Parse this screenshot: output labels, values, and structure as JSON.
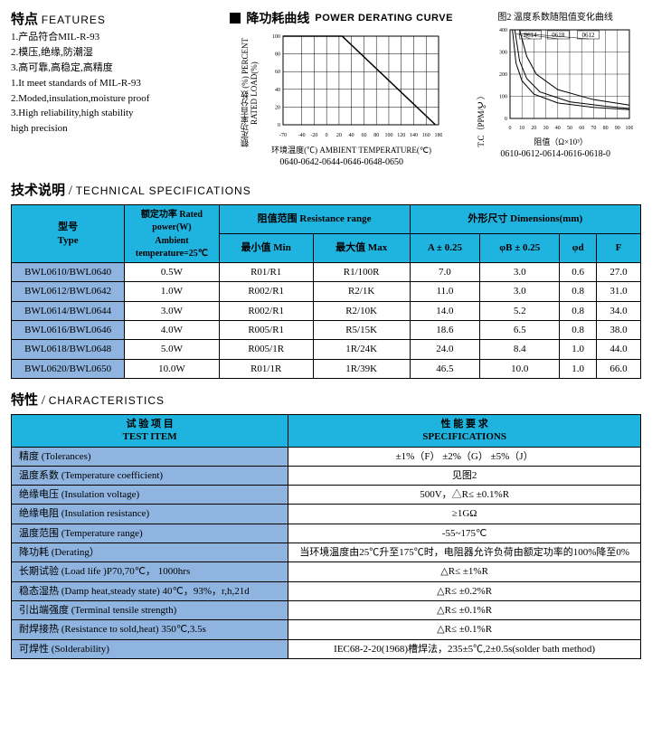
{
  "features": {
    "title_zh": "特点",
    "title_en": "FEATURES",
    "lines_zh": [
      "1.产品符合MIL-R-93",
      "2.模压,绝缘,防潮湿",
      "3.高可靠,高稳定,高精度"
    ],
    "lines_en": [
      "1.It meet standards of MIL-R-93",
      "2.Moded,insulation,moisture proof",
      "3.High reliability,high stability",
      "high precision"
    ]
  },
  "derating": {
    "title_zh": "降功耗曲线",
    "title_en": "POWER DERATING CURVE",
    "ylabel": "额定功率百分数 (%)\nPERCENT RATED LOAD(%)",
    "xlabel": "环境温度(℃) AMBIENT TEMPERATURE(℃)",
    "models": "0640-0642-0644-0646-0648-0650",
    "xticks": [
      -70,
      -40,
      -20,
      0,
      20,
      40,
      60,
      80,
      100,
      120,
      140,
      160,
      180
    ],
    "yticks": [
      0,
      20,
      40,
      60,
      80,
      100
    ],
    "line_points": [
      [
        -70,
        100
      ],
      [
        25,
        100
      ],
      [
        175,
        0
      ]
    ],
    "grid_color": "#000",
    "line_color": "#000",
    "bg": "#fff"
  },
  "tc_chart": {
    "title": "图2 温度系数随阻值变化曲线",
    "ylabel": "T.C（PPM/℃）",
    "xlabel": "阻值（Ω×10³）",
    "models": "0610-0612-0614-0616-0618-0",
    "xticks": [
      0,
      10,
      20,
      30,
      40,
      50,
      60,
      70,
      80,
      90,
      100
    ],
    "yticks": [
      0,
      100,
      200,
      300,
      400
    ],
    "curves": [
      {
        "label": "0614",
        "points": [
          [
            2,
            400
          ],
          [
            5,
            250
          ],
          [
            10,
            170
          ],
          [
            20,
            110
          ],
          [
            40,
            70
          ],
          [
            70,
            50
          ],
          [
            100,
            40
          ]
        ]
      },
      {
        "label": "0618",
        "points": [
          [
            4,
            400
          ],
          [
            8,
            260
          ],
          [
            14,
            180
          ],
          [
            25,
            120
          ],
          [
            50,
            75
          ],
          [
            80,
            55
          ],
          [
            100,
            45
          ]
        ]
      },
      {
        "label": "0612",
        "points": [
          [
            8,
            400
          ],
          [
            14,
            280
          ],
          [
            22,
            200
          ],
          [
            40,
            130
          ],
          [
            70,
            85
          ],
          [
            100,
            60
          ]
        ]
      }
    ]
  },
  "tech_spec": {
    "heading_zh": "技术说明",
    "heading_en": "TECHNICAL SPECIFICATIONS",
    "headers": {
      "type_zh": "型号",
      "type_en": "Type",
      "power_zh": "额定功率 Rated  power(W)",
      "power_sub": "Ambient temperature=25℃",
      "res_range": "阻值范围  Resistance range",
      "min": "最小值 Min",
      "max": "最大值 Max",
      "dim": "外形尺寸  Dimensions(mm)",
      "a": "A ± 0.25",
      "b": "φB ± 0.25",
      "d": "φd",
      "f": "F"
    },
    "rows": [
      {
        "type": "BWL0610/BWL0640",
        "power": "0.5W",
        "min": "R01/R1",
        "max": "R1/100R",
        "a": "7.0",
        "b": "3.0",
        "d": "0.6",
        "f": "27.0"
      },
      {
        "type": "BWL0612/BWL0642",
        "power": "1.0W",
        "min": "R002/R1",
        "max": "R2/1K",
        "a": "11.0",
        "b": "3.0",
        "d": "0.8",
        "f": "31.0"
      },
      {
        "type": "BWL0614/BWL0644",
        "power": "3.0W",
        "min": "R002/R1",
        "max": "R2/10K",
        "a": "14.0",
        "b": "5.2",
        "d": "0.8",
        "f": "34.0"
      },
      {
        "type": "BWL0616/BWL0646",
        "power": "4.0W",
        "min": "R005/R1",
        "max": "R5/15K",
        "a": "18.6",
        "b": "6.5",
        "d": "0.8",
        "f": "38.0"
      },
      {
        "type": "BWL0618/BWL0648",
        "power": "5.0W",
        "min": "R005/1R",
        "max": "1R/24K",
        "a": "24.0",
        "b": "8.4",
        "d": "1.0",
        "f": "44.0"
      },
      {
        "type": "BWL0620/BWL0650",
        "power": "10.0W",
        "min": "R01/1R",
        "max": "1R/39K",
        "a": "46.5",
        "b": "10.0",
        "d": "1.0",
        "f": "66.0"
      }
    ]
  },
  "chars": {
    "heading_zh": "特性",
    "heading_en": "CHARACTERISTICS",
    "hdr_test_zh": "试 验 项 目",
    "hdr_test_en": "TEST  ITEM",
    "hdr_spec_zh": "性 能 要 求",
    "hdr_spec_en": "SPECIFICATIONS",
    "rows": [
      {
        "t": "精度 (Tolerances)",
        "s": "±1%（F） ±2%（G） ±5%（J）"
      },
      {
        "t": "温度系数 (Temperature coefficient)",
        "s": "见图2"
      },
      {
        "t": "绝缘电压 (Insulation voltage)",
        "s": "500V，△R≤ ±0.1%R"
      },
      {
        "t": "绝缘电阻 (Insulation resistance)",
        "s": "≥1GΩ"
      },
      {
        "t": "温度范围 (Temperature range)",
        "s": "-55~175℃"
      },
      {
        "t": "降功耗 (Derating）",
        "s": "当环境温度由25℃升至175℃时，电阻器允许负荷由额定功率的100%降至0%"
      },
      {
        "t": "长期试验 (Load life )P70,70℃， 1000hrs",
        "s": "△R≤ ±1%R"
      },
      {
        "t": "稳态湿热 (Damp heat,steady state) 40℃，93%，r,h,21d",
        "s": "△R≤ ±0.2%R"
      },
      {
        "t": "引出端强度 (Terminal tensile strength)",
        "s": "△R≤ ±0.1%R"
      },
      {
        "t": "耐焊接热 (Resistance to sold,heat) 350℃,3.5s",
        "s": "△R≤ ±0.1%R"
      },
      {
        "t": "可焊性 (Solderability)",
        "s": "IEC68-2-20(1968)槽焊法，235±5℃,2±0.5s(solder bath method)"
      }
    ]
  }
}
